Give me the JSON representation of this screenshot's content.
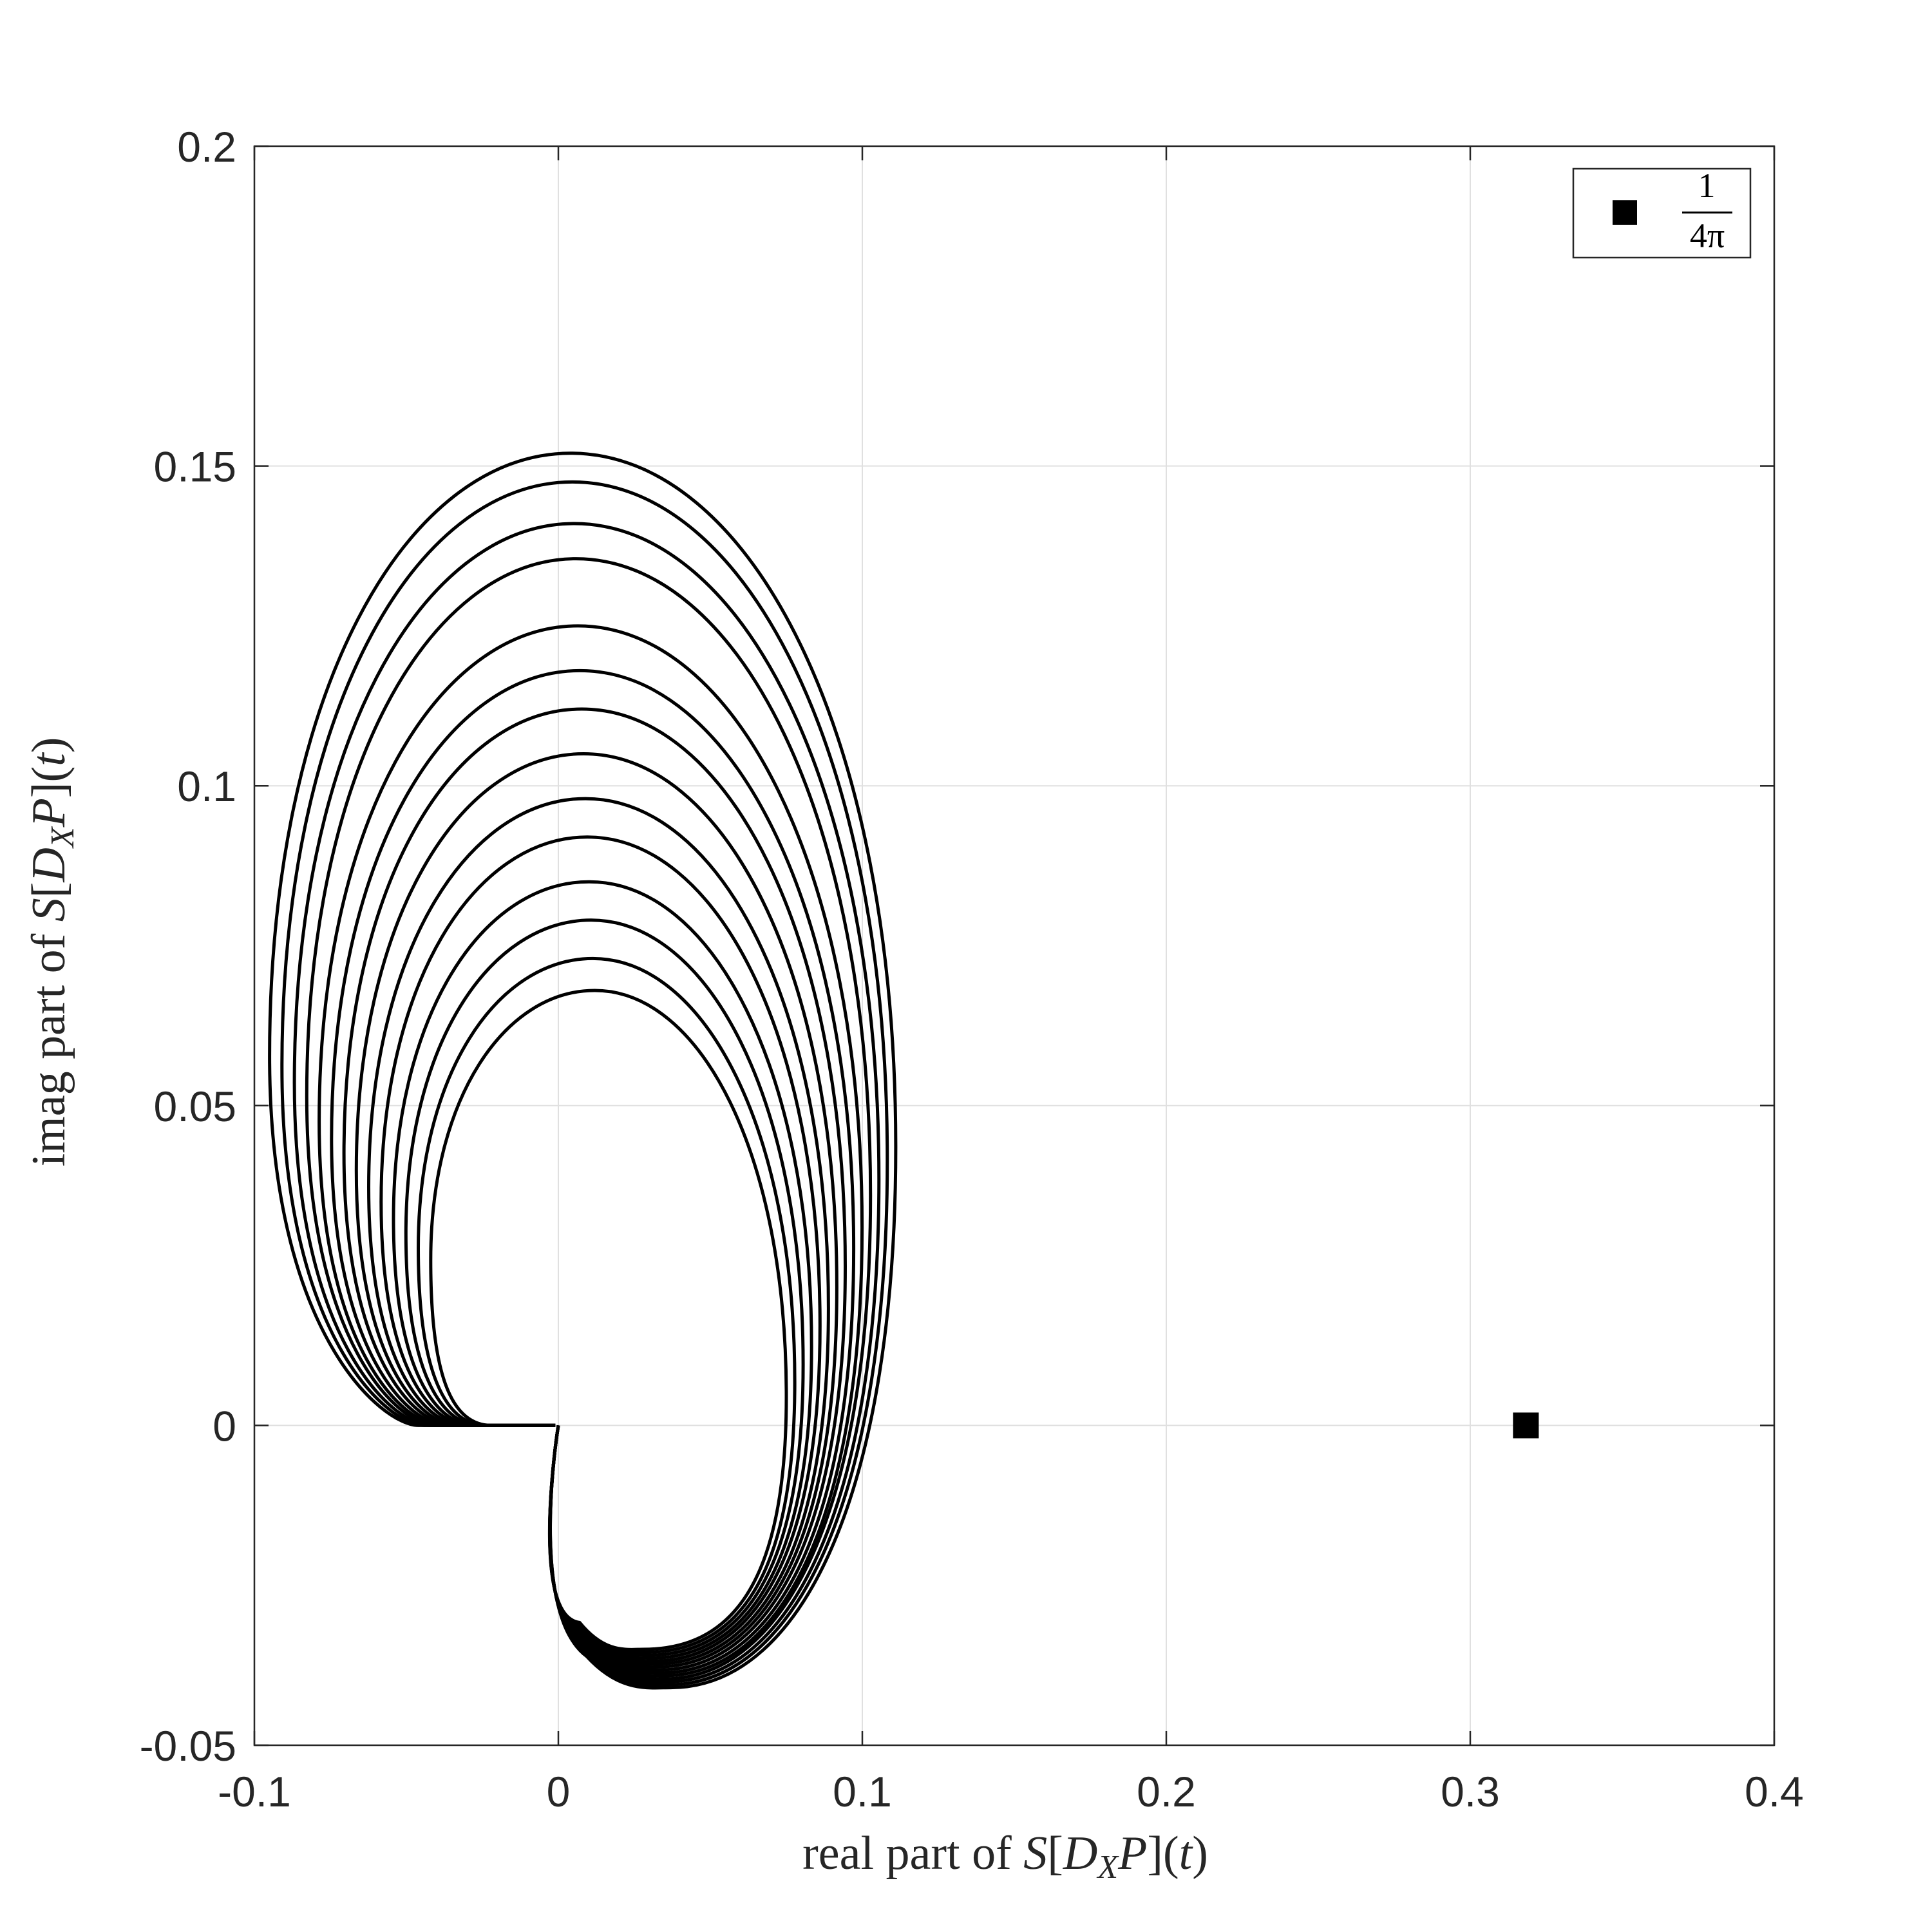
{
  "chart_data": {
    "type": "line",
    "xlabel": "real part of S[D_X P](t)",
    "xlabel_parts": {
      "prefix": "real part of ",
      "S": "S",
      "open": "[",
      "D": "D",
      "sub": "X",
      "P": "P",
      "close": "](",
      "t": "t",
      "end": ")"
    },
    "ylabel": "imag part of S[D_X P](t)",
    "ylabel_parts": {
      "prefix": "imag part of ",
      "S": "S",
      "open": "[",
      "D": "D",
      "sub": "X",
      "P": "P",
      "close": "](",
      "t": "t",
      "end": ")"
    },
    "xlim": [
      -0.1,
      0.4
    ],
    "ylim": [
      -0.05,
      0.2
    ],
    "xticks": [
      -0.1,
      0,
      0.1,
      0.2,
      0.3,
      0.4
    ],
    "xtick_labels": [
      "-0.1",
      "0",
      "0.1",
      "0.2",
      "0.3",
      "0.4"
    ],
    "yticks": [
      -0.05,
      0,
      0.05,
      0.1,
      0.15,
      0.2
    ],
    "ytick_labels": [
      "-0.05",
      "0",
      "0.05",
      "0.1",
      "0.15",
      "0.2"
    ],
    "grid": true,
    "legend_position": "top-right",
    "legend": [
      {
        "marker": "square",
        "label_numerator": "1",
        "label_denominator": "4π"
      }
    ],
    "marker_point": {
      "x": 0.3183,
      "y": 0
    },
    "curve_family": {
      "count": 14,
      "start": {
        "x": 0,
        "y": 0
      },
      "bottom_min_y": [
        -0.035,
        -0.041
      ],
      "bottom_min_x": [
        0.028,
        0.037
      ],
      "right_extreme_x": [
        0.075,
        0.111
      ],
      "top_peak_y": [
        0.068,
        0.152
      ],
      "top_peak_x": [
        0.012,
        0.004
      ],
      "left_extreme_x": [
        -0.042,
        -0.095
      ],
      "tail_end_x": [
        -0.022,
        -0.046
      ],
      "curves": [
        {
          "top_peak_y": 0.068
        },
        {
          "top_peak_y": 0.073
        },
        {
          "top_peak_y": 0.079
        },
        {
          "top_peak_y": 0.085
        },
        {
          "top_peak_y": 0.092
        },
        {
          "top_peak_y": 0.098
        },
        {
          "top_peak_y": 0.105
        },
        {
          "top_peak_y": 0.112
        },
        {
          "top_peak_y": 0.118
        },
        {
          "top_peak_y": 0.125
        },
        {
          "top_peak_y": 0.1355
        },
        {
          "top_peak_y": 0.141
        },
        {
          "top_peak_y": 0.1475
        },
        {
          "top_peak_y": 0.152
        }
      ]
    }
  },
  "colors": {
    "curve": "#000000",
    "grid": "#e0e0e0",
    "axis": "#262626",
    "background": "#ffffff"
  }
}
